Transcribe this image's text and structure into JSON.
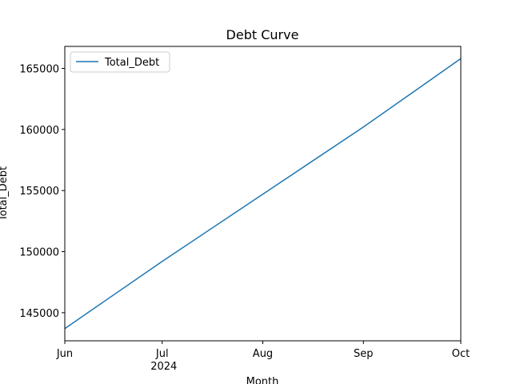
{
  "chart_data": {
    "type": "line",
    "title": "Debt Curve",
    "xlabel": "Month",
    "ylabel": "Total_Debt",
    "x_ticks": [
      "Jun",
      "Jul",
      "Aug",
      "Sep",
      "Oct"
    ],
    "x_tick_sublabel": "2024",
    "x": [
      "2024-06-01",
      "2024-07-01",
      "2024-08-01",
      "2024-09-01",
      "2024-10-01"
    ],
    "xlim": [
      "2024-06-01",
      "2024-10-01"
    ],
    "ylim": [
      142700,
      166800
    ],
    "y_ticks": [
      145000,
      150000,
      155000,
      160000,
      165000
    ],
    "series": [
      {
        "name": "Total_Debt",
        "color": "#1f77b4",
        "values": [
          143700,
          149200,
          154700,
          160200,
          165800
        ]
      }
    ],
    "grid": false,
    "legend": "upper-left"
  }
}
